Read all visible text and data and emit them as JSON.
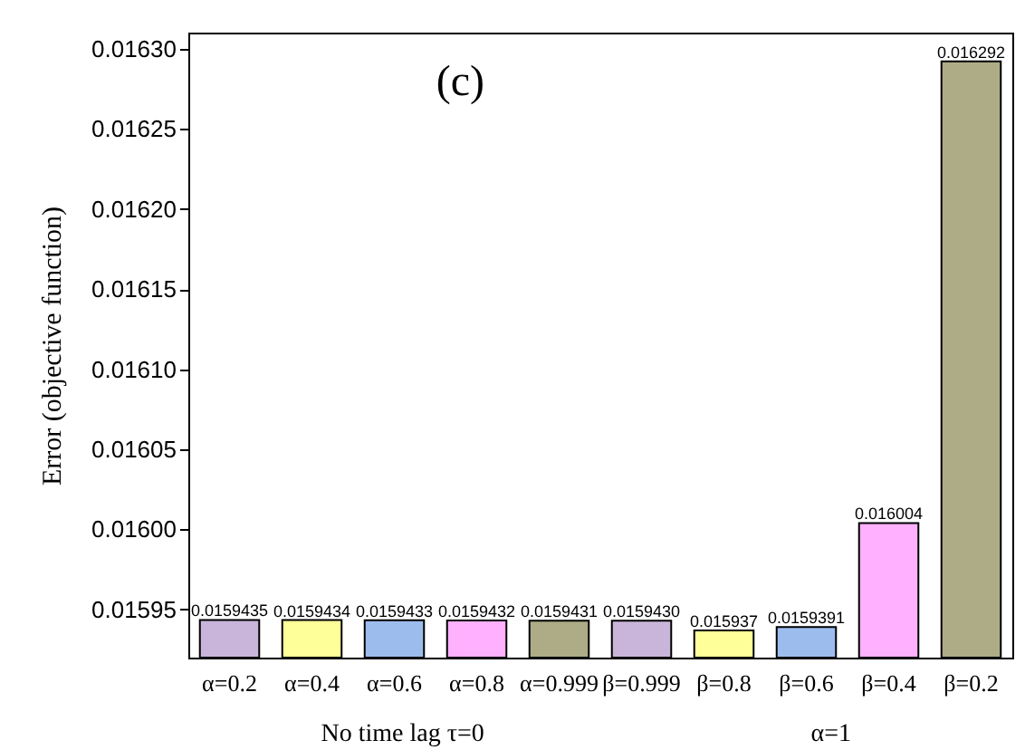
{
  "chart_data": {
    "type": "bar",
    "ylabel": "Error (objective function)",
    "categories": [
      "α=0.2",
      "α=0.4",
      "α=0.6",
      "α=0.8",
      "α=0.999",
      "β=0.999",
      "β=0.8",
      "β=0.6",
      "β=0.4",
      "β=0.2"
    ],
    "values": [
      0.0159435,
      0.0159434,
      0.0159433,
      0.0159432,
      0.0159431,
      0.015943,
      0.015937,
      0.0159391,
      0.016004,
      0.016292
    ],
    "value_labels": [
      "0.0159435",
      "0.0159434",
      "0.0159433",
      "0.0159432",
      "0.0159431",
      "0.0159430",
      "0.015937",
      "0.0159391",
      "0.016004",
      "0.016292"
    ],
    "colors": [
      "#c9b5d9",
      "#ffff99",
      "#9dbcee",
      "#ffb0ff",
      "#aeac86",
      "#c9b5d9",
      "#ffff99",
      "#9dbcee",
      "#ffb0ff",
      "#aeac86"
    ],
    "ylim": [
      0.01592,
      0.01631
    ],
    "yticks": [
      0.01595,
      {
        "value": 0.016,
        "label": "0.01600"
      },
      0.01605,
      {
        "value": 0.0161,
        "label": "0.01610"
      },
      0.01615,
      {
        "value": 0.0162,
        "label": "0.01620"
      },
      0.01625,
      {
        "value": 0.0163,
        "label": "0.01630"
      }
    ],
    "annotations": [
      "(c)",
      "No time lag   τ=0",
      "α=1"
    ],
    "grid": false
  }
}
